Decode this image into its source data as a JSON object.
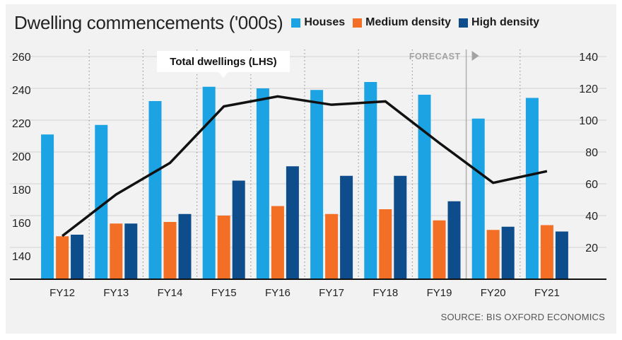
{
  "title": "Dwelling commencements ('000s)",
  "legend": [
    {
      "label": "Houses",
      "color": "#1ca3e4"
    },
    {
      "label": "Medium density",
      "color": "#f26f25"
    },
    {
      "label": "High density",
      "color": "#0d4d8c"
    }
  ],
  "source": "SOURCE: BIS OXFORD ECONOMICS",
  "chart_data": {
    "type": "bar+line",
    "categories": [
      "FY12",
      "FY13",
      "FY14",
      "FY15",
      "FY16",
      "FY17",
      "FY18",
      "FY19",
      "FY20",
      "FY21"
    ],
    "right_axis": {
      "range": [
        0,
        140
      ],
      "ticks": [
        20,
        40,
        60,
        80,
        100,
        120,
        140
      ]
    },
    "left_axis": {
      "range": [
        126,
        260
      ],
      "ticks": [
        140,
        160,
        180,
        200,
        220,
        240,
        260
      ]
    },
    "series": [
      {
        "name": "Houses",
        "axis": "right",
        "values": [
          91,
          97,
          112,
          121,
          120,
          119,
          124,
          116,
          101,
          114
        ]
      },
      {
        "name": "Medium density",
        "axis": "right",
        "values": [
          27,
          35,
          36,
          40,
          46,
          41,
          44,
          37,
          31,
          34
        ]
      },
      {
        "name": "High density",
        "axis": "right",
        "values": [
          28,
          35,
          41,
          62,
          71,
          65,
          65,
          49,
          33,
          30
        ]
      }
    ],
    "line": {
      "name": "Total dwellings (LHS)",
      "axis": "left",
      "values": [
        152,
        177,
        196,
        230,
        236,
        231,
        233,
        208,
        184,
        191
      ]
    },
    "forecast_label": "FORECAST",
    "forecast_from": "FY20",
    "grid": true
  }
}
